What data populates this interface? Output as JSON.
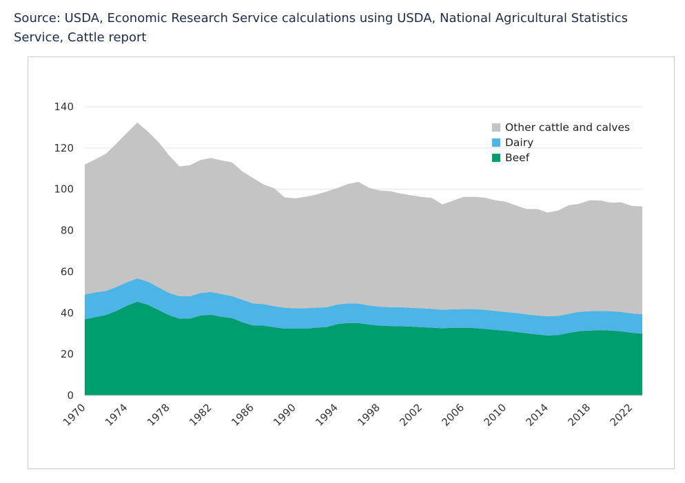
{
  "source_note": "Source: USDA, Economic Research Service calculations using USDA, National Agricultural Statistics Service, Cattle report",
  "colors": {
    "other": "#c4c4c4",
    "dairy": "#4db4e6",
    "beef": "#009e6e",
    "grid": "#e4e4e4"
  },
  "chart_data": {
    "type": "area",
    "stacked": true,
    "title": "",
    "xlabel": "",
    "ylabel": "",
    "ylim": [
      0,
      140
    ],
    "yticks": [
      0,
      20,
      40,
      60,
      80,
      100,
      120,
      140
    ],
    "xlim": [
      1970,
      2023
    ],
    "xticks": [
      "1970",
      "1974",
      "1978",
      "1982",
      "1986",
      "1990",
      "1994",
      "1998",
      "2002",
      "2006",
      "2010",
      "2014",
      "2018",
      "2022"
    ],
    "grid": true,
    "legend_position": "top-right",
    "x": [
      1970,
      1971,
      1972,
      1973,
      1974,
      1975,
      1976,
      1977,
      1978,
      1979,
      1980,
      1981,
      1982,
      1983,
      1984,
      1985,
      1986,
      1987,
      1988,
      1989,
      1990,
      1991,
      1992,
      1993,
      1994,
      1995,
      1996,
      1997,
      1998,
      1999,
      2000,
      2001,
      2002,
      2003,
      2004,
      2005,
      2006,
      2007,
      2008,
      2009,
      2010,
      2011,
      2012,
      2013,
      2014,
      2015,
      2016,
      2017,
      2018,
      2019,
      2020,
      2021,
      2022,
      2023
    ],
    "series": [
      {
        "name": "Beef",
        "key": "beef",
        "values": [
          37,
          38,
          39,
          41,
          43.5,
          45.5,
          44,
          41.5,
          39,
          37.3,
          37.3,
          38.8,
          39.2,
          38.2,
          37.5,
          35.5,
          34,
          33.9,
          33.1,
          32.4,
          32.4,
          32.4,
          32.9,
          33.2,
          34.6,
          35.2,
          35.2,
          34.4,
          33.9,
          33.7,
          33.6,
          33.4,
          33.1,
          32.9,
          32.6,
          32.8,
          32.8,
          32.7,
          32.3,
          31.8,
          31.4,
          30.8,
          30.2,
          29.6,
          29.1,
          29.3,
          30.3,
          31.2,
          31.5,
          31.7,
          31.5,
          31.1,
          30.4,
          30.0
        ]
      },
      {
        "name": "Dairy",
        "key": "dairy",
        "values": [
          12,
          12,
          11.7,
          11.6,
          11.4,
          11.3,
          11.2,
          11,
          10.8,
          10.8,
          10.8,
          10.9,
          11,
          11,
          10.7,
          10.9,
          10.7,
          10.4,
          10.2,
          10.1,
          9.9,
          9.9,
          9.7,
          9.6,
          9.5,
          9.5,
          9.4,
          9.3,
          9.2,
          9.1,
          9.2,
          9.1,
          9.2,
          9.1,
          9.0,
          9.0,
          9.1,
          9.2,
          9.3,
          9.2,
          9.1,
          9.2,
          9.2,
          9.2,
          9.3,
          9.3,
          9.3,
          9.4,
          9.4,
          9.3,
          9.4,
          9.4,
          9.4,
          9.4
        ]
      },
      {
        "name": "Other cattle and calves",
        "key": "other",
        "values": [
          63,
          64.5,
          66.5,
          69.5,
          72.5,
          75.5,
          72.8,
          70.5,
          66.7,
          63,
          63.6,
          64.5,
          65,
          64.8,
          64.8,
          62.2,
          60.8,
          58,
          57.2,
          53.6,
          53.3,
          54.1,
          54.8,
          56.1,
          56.5,
          57.8,
          59,
          57.1,
          56.3,
          56.3,
          55.2,
          54.6,
          54,
          53.8,
          51.1,
          52.7,
          54.4,
          54.4,
          54.4,
          53.7,
          53.5,
          52.2,
          51,
          51.6,
          50.3,
          51.1,
          52.7,
          52.4,
          53.8,
          53.6,
          52.6,
          53.2,
          52.2,
          52.3
        ]
      }
    ],
    "legend": [
      "Other cattle and calves",
      "Dairy",
      "Beef"
    ]
  }
}
